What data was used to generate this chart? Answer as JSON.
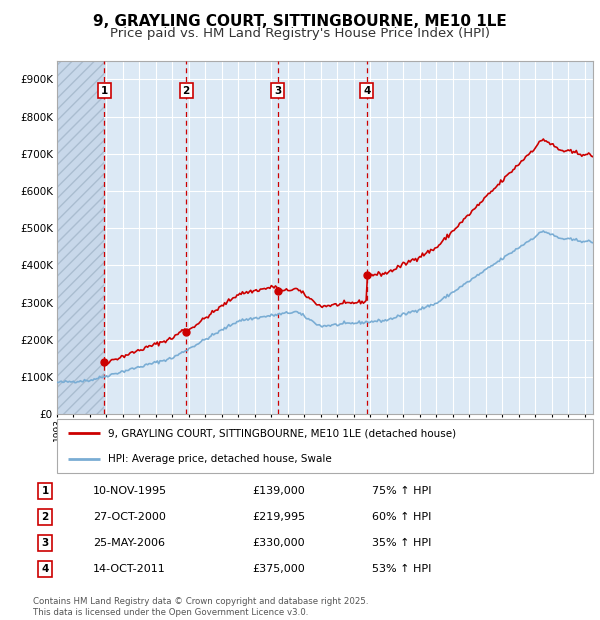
{
  "title": "9, GRAYLING COURT, SITTINGBOURNE, ME10 1LE",
  "subtitle": "Price paid vs. HM Land Registry's House Price Index (HPI)",
  "ylim": [
    0,
    950000
  ],
  "yticks": [
    0,
    100000,
    200000,
    300000,
    400000,
    500000,
    600000,
    700000,
    800000,
    900000
  ],
  "ytick_labels": [
    "£0",
    "£100K",
    "£200K",
    "£300K",
    "£400K",
    "£500K",
    "£600K",
    "£700K",
    "£800K",
    "£900K"
  ],
  "background_color": "#ffffff",
  "chart_bg_color": "#dce9f5",
  "hatch_bg_color": "#c8d8ea",
  "grid_color": "#ffffff",
  "red_line_color": "#cc0000",
  "blue_line_color": "#7aadd4",
  "dashed_line_color": "#cc0000",
  "title_fontsize": 11,
  "subtitle_fontsize": 9.5,
  "purchases": [
    {
      "label": "1",
      "date_x": 1995.86,
      "price": 139000
    },
    {
      "label": "2",
      "date_x": 2000.83,
      "price": 219995
    },
    {
      "label": "3",
      "date_x": 2006.4,
      "price": 330000
    },
    {
      "label": "4",
      "date_x": 2011.79,
      "price": 375000
    }
  ],
  "table_rows": [
    {
      "num": "1",
      "date": "10-NOV-1995",
      "price": "£139,000",
      "change": "75% ↑ HPI"
    },
    {
      "num": "2",
      "date": "27-OCT-2000",
      "price": "£219,995",
      "change": "60% ↑ HPI"
    },
    {
      "num": "3",
      "date": "25-MAY-2006",
      "price": "£330,000",
      "change": "35% ↑ HPI"
    },
    {
      "num": "4",
      "date": "14-OCT-2011",
      "price": "£375,000",
      "change": "53% ↑ HPI"
    }
  ],
  "footer": "Contains HM Land Registry data © Crown copyright and database right 2025.\nThis data is licensed under the Open Government Licence v3.0.",
  "legend_red": "9, GRAYLING COURT, SITTINGBOURNE, ME10 1LE (detached house)",
  "legend_blue": "HPI: Average price, detached house, Swale",
  "xmin": 1993.0,
  "xmax": 2025.5
}
